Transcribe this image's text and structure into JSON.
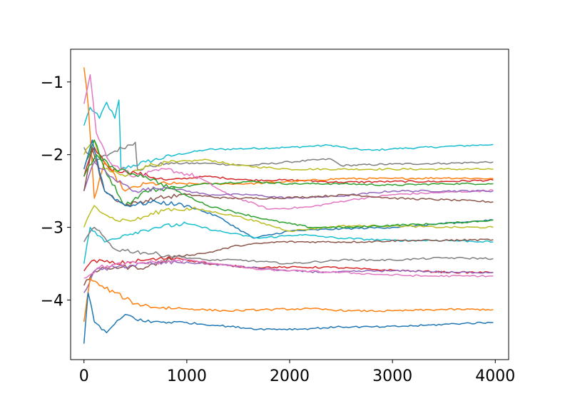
{
  "chart_data": {
    "type": "line",
    "title": "",
    "xlabel": "",
    "ylabel": "",
    "xlim": [
      -130,
      4130
    ],
    "ylim": [
      -4.82,
      -0.55
    ],
    "grid": false,
    "x_ticks": [
      0,
      1000,
      2000,
      3000,
      4000
    ],
    "x_tick_labels": [
      "0",
      "1000",
      "2000",
      "3000",
      "4000"
    ],
    "y_ticks": [
      -4,
      -3,
      -2,
      -1
    ],
    "y_tick_labels": [
      "−4",
      "−3",
      "−2",
      "−1"
    ],
    "series": [
      {
        "color": "#17becf",
        "points": [
          [
            0,
            -1.6
          ],
          [
            60,
            -1.35
          ],
          [
            150,
            -1.5
          ],
          [
            220,
            -1.28
          ],
          [
            300,
            -1.5
          ],
          [
            340,
            -1.25
          ],
          [
            360,
            -2.2
          ],
          [
            600,
            -2.1
          ],
          [
            900,
            -2.0
          ],
          [
            1200,
            -1.93
          ],
          [
            1500,
            -1.92
          ],
          [
            2000,
            -1.9
          ],
          [
            2400,
            -1.87
          ],
          [
            2600,
            -1.92
          ],
          [
            2800,
            -1.94
          ],
          [
            3000,
            -1.92
          ],
          [
            3500,
            -1.89
          ],
          [
            3980,
            -1.86
          ]
        ]
      },
      {
        "color": "#7f7f7f",
        "points": [
          [
            0,
            -1.9
          ],
          [
            100,
            -2.1
          ],
          [
            300,
            -1.95
          ],
          [
            500,
            -1.83
          ],
          [
            520,
            -2.2
          ],
          [
            800,
            -2.12
          ],
          [
            1200,
            -2.12
          ],
          [
            1600,
            -2.15
          ],
          [
            2000,
            -2.1
          ],
          [
            2400,
            -2.06
          ],
          [
            2500,
            -2.15
          ],
          [
            3000,
            -2.13
          ],
          [
            3500,
            -2.12
          ],
          [
            3980,
            -2.1
          ]
        ]
      },
      {
        "color": "#bcbd22",
        "points": [
          [
            0,
            -2.0
          ],
          [
            100,
            -1.8
          ],
          [
            200,
            -2.2
          ],
          [
            400,
            -2.3
          ],
          [
            600,
            -2.15
          ],
          [
            900,
            -2.1
          ],
          [
            1200,
            -2.07
          ],
          [
            1500,
            -2.15
          ],
          [
            2000,
            -2.2
          ],
          [
            2500,
            -2.2
          ],
          [
            3000,
            -2.2
          ],
          [
            3500,
            -2.2
          ],
          [
            3980,
            -2.2
          ]
        ]
      },
      {
        "color": "#d62728",
        "points": [
          [
            0,
            -2.3
          ],
          [
            100,
            -1.9
          ],
          [
            250,
            -2.2
          ],
          [
            500,
            -2.25
          ],
          [
            800,
            -2.35
          ],
          [
            1200,
            -2.3
          ],
          [
            1600,
            -2.35
          ],
          [
            2000,
            -2.35
          ],
          [
            2500,
            -2.38
          ],
          [
            3000,
            -2.37
          ],
          [
            3500,
            -2.37
          ],
          [
            3980,
            -2.35
          ]
        ]
      },
      {
        "color": "#ff7f0e",
        "points": [
          [
            0,
            -0.8
          ],
          [
            40,
            -1.3
          ],
          [
            100,
            -2.6
          ],
          [
            200,
            -2.1
          ],
          [
            400,
            -2.5
          ],
          [
            600,
            -2.4
          ],
          [
            900,
            -2.4
          ],
          [
            1200,
            -2.4
          ],
          [
            1600,
            -2.4
          ],
          [
            2000,
            -2.37
          ],
          [
            2500,
            -2.33
          ],
          [
            3000,
            -2.33
          ],
          [
            3500,
            -2.32
          ],
          [
            3980,
            -2.33
          ]
        ]
      },
      {
        "color": "#2ca02c",
        "points": [
          [
            0,
            -2.2
          ],
          [
            100,
            -1.8
          ],
          [
            200,
            -2.2
          ],
          [
            400,
            -2.7
          ],
          [
            600,
            -2.5
          ],
          [
            900,
            -2.45
          ],
          [
            1200,
            -2.4
          ],
          [
            1600,
            -2.37
          ],
          [
            2000,
            -2.4
          ],
          [
            2500,
            -2.4
          ],
          [
            3000,
            -2.42
          ],
          [
            3500,
            -2.4
          ],
          [
            3980,
            -2.4
          ]
        ]
      },
      {
        "color": "#e377c2",
        "points": [
          [
            0,
            -1.3
          ],
          [
            60,
            -0.9
          ],
          [
            120,
            -1.7
          ],
          [
            250,
            -2.1
          ],
          [
            500,
            -2.3
          ],
          [
            800,
            -2.2
          ],
          [
            1100,
            -2.3
          ],
          [
            1400,
            -2.55
          ],
          [
            1800,
            -2.75
          ],
          [
            2200,
            -2.72
          ],
          [
            2600,
            -2.62
          ],
          [
            3000,
            -2.55
          ],
          [
            3500,
            -2.52
          ],
          [
            3980,
            -2.49
          ]
        ]
      },
      {
        "color": "#9467bd",
        "points": [
          [
            0,
            -2.5
          ],
          [
            100,
            -2.1
          ],
          [
            250,
            -2.3
          ],
          [
            500,
            -2.5
          ],
          [
            800,
            -2.45
          ],
          [
            1200,
            -2.55
          ],
          [
            1600,
            -2.55
          ],
          [
            2000,
            -2.6
          ],
          [
            2500,
            -2.57
          ],
          [
            3000,
            -2.5
          ],
          [
            3500,
            -2.5
          ],
          [
            3980,
            -2.5
          ]
        ]
      },
      {
        "color": "#8c564b",
        "points": [
          [
            0,
            -2.5
          ],
          [
            80,
            -1.9
          ],
          [
            200,
            -2.5
          ],
          [
            400,
            -2.7
          ],
          [
            700,
            -2.6
          ],
          [
            1000,
            -2.55
          ],
          [
            1400,
            -2.6
          ],
          [
            1800,
            -2.6
          ],
          [
            2200,
            -2.58
          ],
          [
            2600,
            -2.55
          ],
          [
            3000,
            -2.6
          ],
          [
            3500,
            -2.62
          ],
          [
            3980,
            -2.65
          ]
        ]
      },
      {
        "color": "#1f77b4",
        "points": [
          [
            0,
            -2.2
          ],
          [
            80,
            -1.8
          ],
          [
            200,
            -2.5
          ],
          [
            400,
            -2.7
          ],
          [
            700,
            -2.65
          ],
          [
            1000,
            -2.7
          ],
          [
            1300,
            -2.85
          ],
          [
            1650,
            -3.15
          ],
          [
            2000,
            -3.05
          ],
          [
            2500,
            -3.02
          ],
          [
            3000,
            -3.0
          ],
          [
            3500,
            -2.95
          ],
          [
            3980,
            -2.9
          ]
        ]
      },
      {
        "color": "#bcbd22",
        "points": [
          [
            0,
            -3.0
          ],
          [
            100,
            -2.7
          ],
          [
            300,
            -2.9
          ],
          [
            500,
            -2.9
          ],
          [
            800,
            -2.75
          ],
          [
            1100,
            -2.75
          ],
          [
            1500,
            -2.85
          ],
          [
            2000,
            -3.05
          ],
          [
            2500,
            -2.98
          ],
          [
            3000,
            -2.98
          ],
          [
            3500,
            -3.0
          ],
          [
            3980,
            -3.0
          ]
        ]
      },
      {
        "color": "#2ca02c",
        "points": [
          [
            0,
            -2.3
          ],
          [
            120,
            -2.0
          ],
          [
            300,
            -2.2
          ],
          [
            600,
            -2.3
          ],
          [
            900,
            -2.5
          ],
          [
            1200,
            -2.7
          ],
          [
            1500,
            -2.8
          ],
          [
            1800,
            -2.9
          ],
          [
            2200,
            -3.0
          ],
          [
            2600,
            -3.0
          ],
          [
            3000,
            -2.97
          ],
          [
            3500,
            -2.95
          ],
          [
            3980,
            -2.9
          ]
        ]
      },
      {
        "color": "#17becf",
        "points": [
          [
            0,
            -3.5
          ],
          [
            60,
            -3.0
          ],
          [
            200,
            -3.2
          ],
          [
            400,
            -3.1
          ],
          [
            700,
            -3.0
          ],
          [
            1000,
            -2.95
          ],
          [
            1300,
            -3.05
          ],
          [
            1700,
            -3.15
          ],
          [
            2100,
            -3.1
          ],
          [
            2500,
            -3.15
          ],
          [
            3000,
            -3.18
          ],
          [
            3500,
            -3.18
          ],
          [
            3980,
            -3.2
          ]
        ]
      },
      {
        "color": "#8c564b",
        "points": [
          [
            0,
            -3.8
          ],
          [
            100,
            -3.6
          ],
          [
            300,
            -3.55
          ],
          [
            600,
            -3.55
          ],
          [
            900,
            -3.4
          ],
          [
            1200,
            -3.35
          ],
          [
            1500,
            -3.25
          ],
          [
            1900,
            -3.2
          ],
          [
            2300,
            -3.2
          ],
          [
            2700,
            -3.2
          ],
          [
            3100,
            -3.18
          ],
          [
            3500,
            -3.18
          ],
          [
            3980,
            -3.17
          ]
        ]
      },
      {
        "color": "#7f7f7f",
        "points": [
          [
            0,
            -3.2
          ],
          [
            100,
            -3.0
          ],
          [
            300,
            -3.3
          ],
          [
            600,
            -3.35
          ],
          [
            900,
            -3.4
          ],
          [
            1200,
            -3.45
          ],
          [
            1500,
            -3.45
          ],
          [
            2000,
            -3.5
          ],
          [
            2500,
            -3.45
          ],
          [
            3000,
            -3.45
          ],
          [
            3500,
            -3.42
          ],
          [
            3980,
            -3.43
          ]
        ]
      },
      {
        "color": "#d62728",
        "points": [
          [
            0,
            -3.6
          ],
          [
            100,
            -3.45
          ],
          [
            300,
            -3.5
          ],
          [
            600,
            -3.45
          ],
          [
            900,
            -3.42
          ],
          [
            1200,
            -3.5
          ],
          [
            1600,
            -3.55
          ],
          [
            2000,
            -3.55
          ],
          [
            2400,
            -3.55
          ],
          [
            2800,
            -3.58
          ],
          [
            3200,
            -3.6
          ],
          [
            3600,
            -3.62
          ],
          [
            3980,
            -3.62
          ]
        ]
      },
      {
        "color": "#9467bd",
        "points": [
          [
            0,
            -3.9
          ],
          [
            100,
            -3.6
          ],
          [
            300,
            -3.55
          ],
          [
            600,
            -3.5
          ],
          [
            900,
            -3.48
          ],
          [
            1200,
            -3.5
          ],
          [
            1600,
            -3.55
          ],
          [
            2000,
            -3.6
          ],
          [
            2400,
            -3.62
          ],
          [
            2800,
            -3.6
          ],
          [
            3200,
            -3.6
          ],
          [
            3600,
            -3.62
          ],
          [
            3980,
            -3.62
          ]
        ]
      },
      {
        "color": "#e377c2",
        "points": [
          [
            0,
            -3.7
          ],
          [
            150,
            -3.55
          ],
          [
            400,
            -3.5
          ],
          [
            700,
            -3.48
          ],
          [
            1000,
            -3.45
          ],
          [
            1300,
            -3.5
          ],
          [
            1700,
            -3.58
          ],
          [
            2100,
            -3.6
          ],
          [
            2500,
            -3.62
          ],
          [
            2900,
            -3.65
          ],
          [
            3300,
            -3.67
          ],
          [
            3700,
            -3.67
          ],
          [
            3980,
            -3.67
          ]
        ]
      },
      {
        "color": "#ff7f0e",
        "points": [
          [
            0,
            -4.3
          ],
          [
            60,
            -3.7
          ],
          [
            150,
            -3.8
          ],
          [
            300,
            -3.9
          ],
          [
            500,
            -4.05
          ],
          [
            700,
            -4.1
          ],
          [
            1000,
            -4.12
          ],
          [
            1400,
            -4.15
          ],
          [
            1800,
            -4.13
          ],
          [
            2200,
            -4.12
          ],
          [
            2600,
            -4.15
          ],
          [
            3000,
            -4.15
          ],
          [
            3500,
            -4.13
          ],
          [
            3980,
            -4.13
          ]
        ]
      },
      {
        "color": "#1f77b4",
        "points": [
          [
            0,
            -4.6
          ],
          [
            40,
            -3.9
          ],
          [
            100,
            -4.3
          ],
          [
            220,
            -4.45
          ],
          [
            400,
            -4.2
          ],
          [
            600,
            -4.3
          ],
          [
            900,
            -4.3
          ],
          [
            1300,
            -4.35
          ],
          [
            1700,
            -4.4
          ],
          [
            2100,
            -4.4
          ],
          [
            2500,
            -4.37
          ],
          [
            2900,
            -4.37
          ],
          [
            3300,
            -4.35
          ],
          [
            3700,
            -4.32
          ],
          [
            3980,
            -4.31
          ]
        ]
      }
    ]
  }
}
